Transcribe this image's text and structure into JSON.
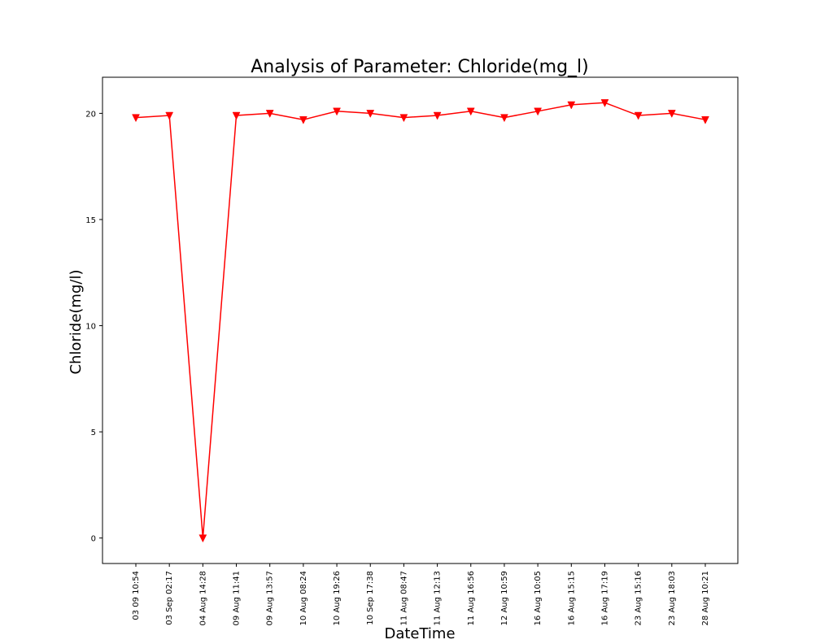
{
  "chart_data": {
    "type": "line",
    "title": "Analysis of Parameter: Chloride(mg_l)",
    "xlabel": "DateTime",
    "ylabel": "Chloride(mg/l)",
    "ylim": [
      -1.2,
      21.7
    ],
    "yticks": [
      0,
      5,
      10,
      15,
      20
    ],
    "grid": false,
    "marker": "triangle-down",
    "color": "#ff0000",
    "categories": [
      "03 09 10:54",
      "03 Sep 02:17",
      "04 Aug 14:28",
      "09 Aug 11:41",
      "09 Aug 13:57",
      "10 Aug 08:24",
      "10 Aug 19:26",
      "10 Sep 17:38",
      "11 Aug 08:47",
      "11 Aug 12:13",
      "11 Aug 16:56",
      "12 Aug 10:59",
      "16 Aug 10:05",
      "16 Aug 15:15",
      "16 Aug 17:19",
      "23 Aug 15:16",
      "23 Aug 18:03",
      "28 Aug 10:21"
    ],
    "series": [
      {
        "values": [
          19.8,
          19.9,
          0.0,
          19.9,
          20.0,
          19.7,
          20.1,
          20.0,
          19.8,
          19.9,
          20.1,
          19.8,
          20.1,
          20.4,
          20.5,
          19.9,
          20.0,
          19.7
        ]
      }
    ]
  }
}
